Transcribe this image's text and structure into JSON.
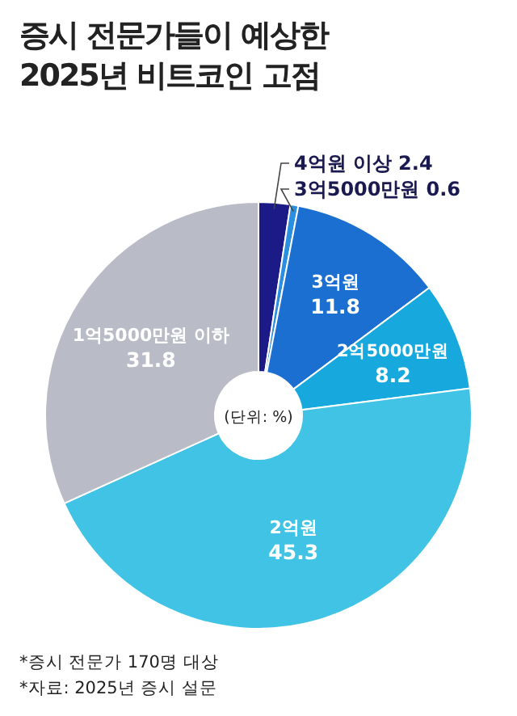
{
  "chart_data": {
    "type": "donut",
    "title": "증시 전문가들이 예상한 2025년 비트코인 고점",
    "categories": [
      "4억원 이상",
      "3억5000만원",
      "3억원",
      "2억5000만원",
      "2억원",
      "1억5000만원 이하"
    ],
    "values": [
      2.4,
      0.6,
      11.8,
      8.2,
      45.3,
      31.8
    ],
    "colors": [
      "#1c1a86",
      "#2a8fe0",
      "#1b6fd0",
      "#17a9de",
      "#40c3e4",
      "#b9bcc6"
    ],
    "data_labels": true,
    "annotations": [
      "(단위: %)",
      "*증시 전문가 170명 대상",
      "*자료: 2025년 증시 설문"
    ]
  }
}
